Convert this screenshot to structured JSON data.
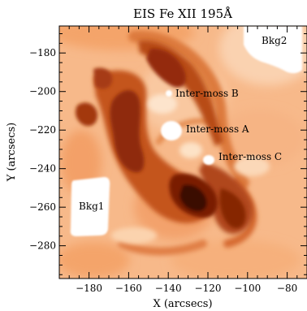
{
  "figure": {
    "title": "EIS Fe XII 195Å",
    "xlabel": "X (arcsecs)",
    "ylabel": "Y (arcsecs)",
    "x_range": [
      -195,
      -70
    ],
    "y_range": [
      -297,
      -166
    ],
    "x_ticks": [
      {
        "value": -180,
        "label": "−180"
      },
      {
        "value": -160,
        "label": "−160"
      },
      {
        "value": -140,
        "label": "−140"
      },
      {
        "value": -120,
        "label": "−120"
      },
      {
        "value": -100,
        "label": "−100"
      },
      {
        "value": -80,
        "label": "−80"
      }
    ],
    "y_ticks": [
      {
        "value": -180,
        "label": "−180"
      },
      {
        "value": -200,
        "label": "−200"
      },
      {
        "value": -220,
        "label": "−220"
      },
      {
        "value": -240,
        "label": "−240"
      },
      {
        "value": -260,
        "label": "−260"
      },
      {
        "value": -280,
        "label": "−280"
      }
    ],
    "regions": [
      {
        "label": "Bkg1",
        "x": -172,
        "y": -262
      },
      {
        "label": "Bkg2",
        "x": -80,
        "y": -175
      },
      {
        "label": "Inter-moss A",
        "x": -140,
        "y": -220
      },
      {
        "label": "Inter-moss B",
        "x": -138,
        "y": -202
      },
      {
        "label": "Inter-moss C",
        "x": -118,
        "y": -235
      }
    ],
    "colors": {
      "background_plasma": "#f7b98a",
      "bright_plasma": "#fce0c4",
      "loop": "#c85a24",
      "core": "#8a2408",
      "core_darkest": "#3a0800",
      "region": "#ffffff"
    }
  }
}
